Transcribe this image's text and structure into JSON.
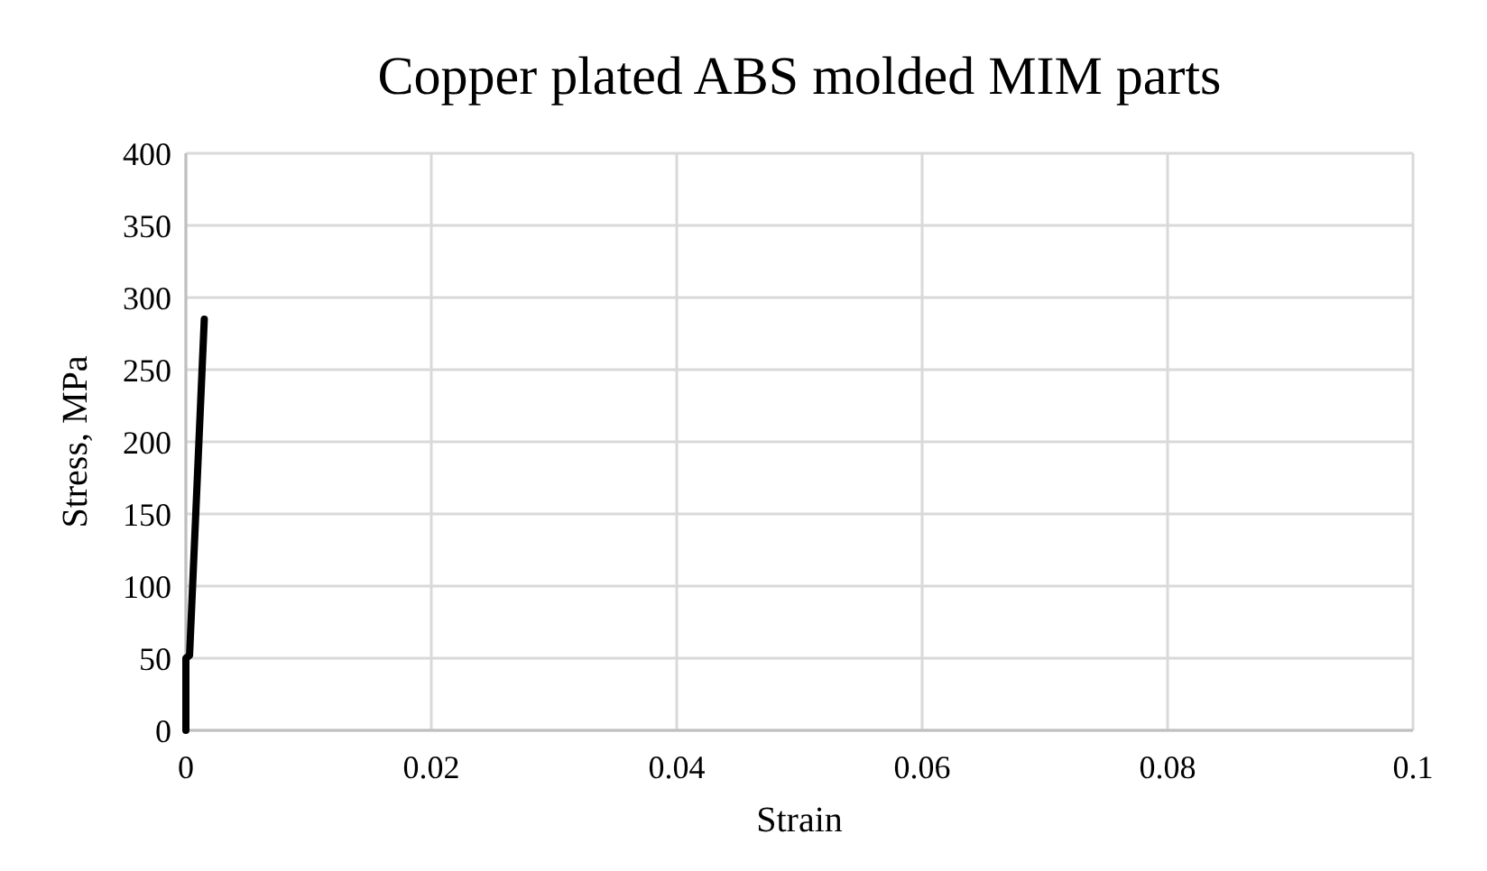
{
  "chart_data": {
    "type": "line",
    "title": "Copper plated ABS molded MIM parts",
    "xlabel": "Strain",
    "ylabel": "Stress, MPa",
    "series": [
      {
        "color": "#000000",
        "x": [
          0,
          0,
          0.0003,
          0.0015
        ],
        "values": [
          0,
          50,
          52,
          285
        ]
      }
    ],
    "xlim": [
      0,
      0.1
    ],
    "xticks": [
      0,
      0.02,
      0.04,
      0.06,
      0.08,
      0.1
    ],
    "ylim": [
      0,
      400
    ],
    "yticks": [
      0,
      50,
      100,
      150,
      200,
      250,
      300,
      350,
      400
    ],
    "grid": true
  }
}
